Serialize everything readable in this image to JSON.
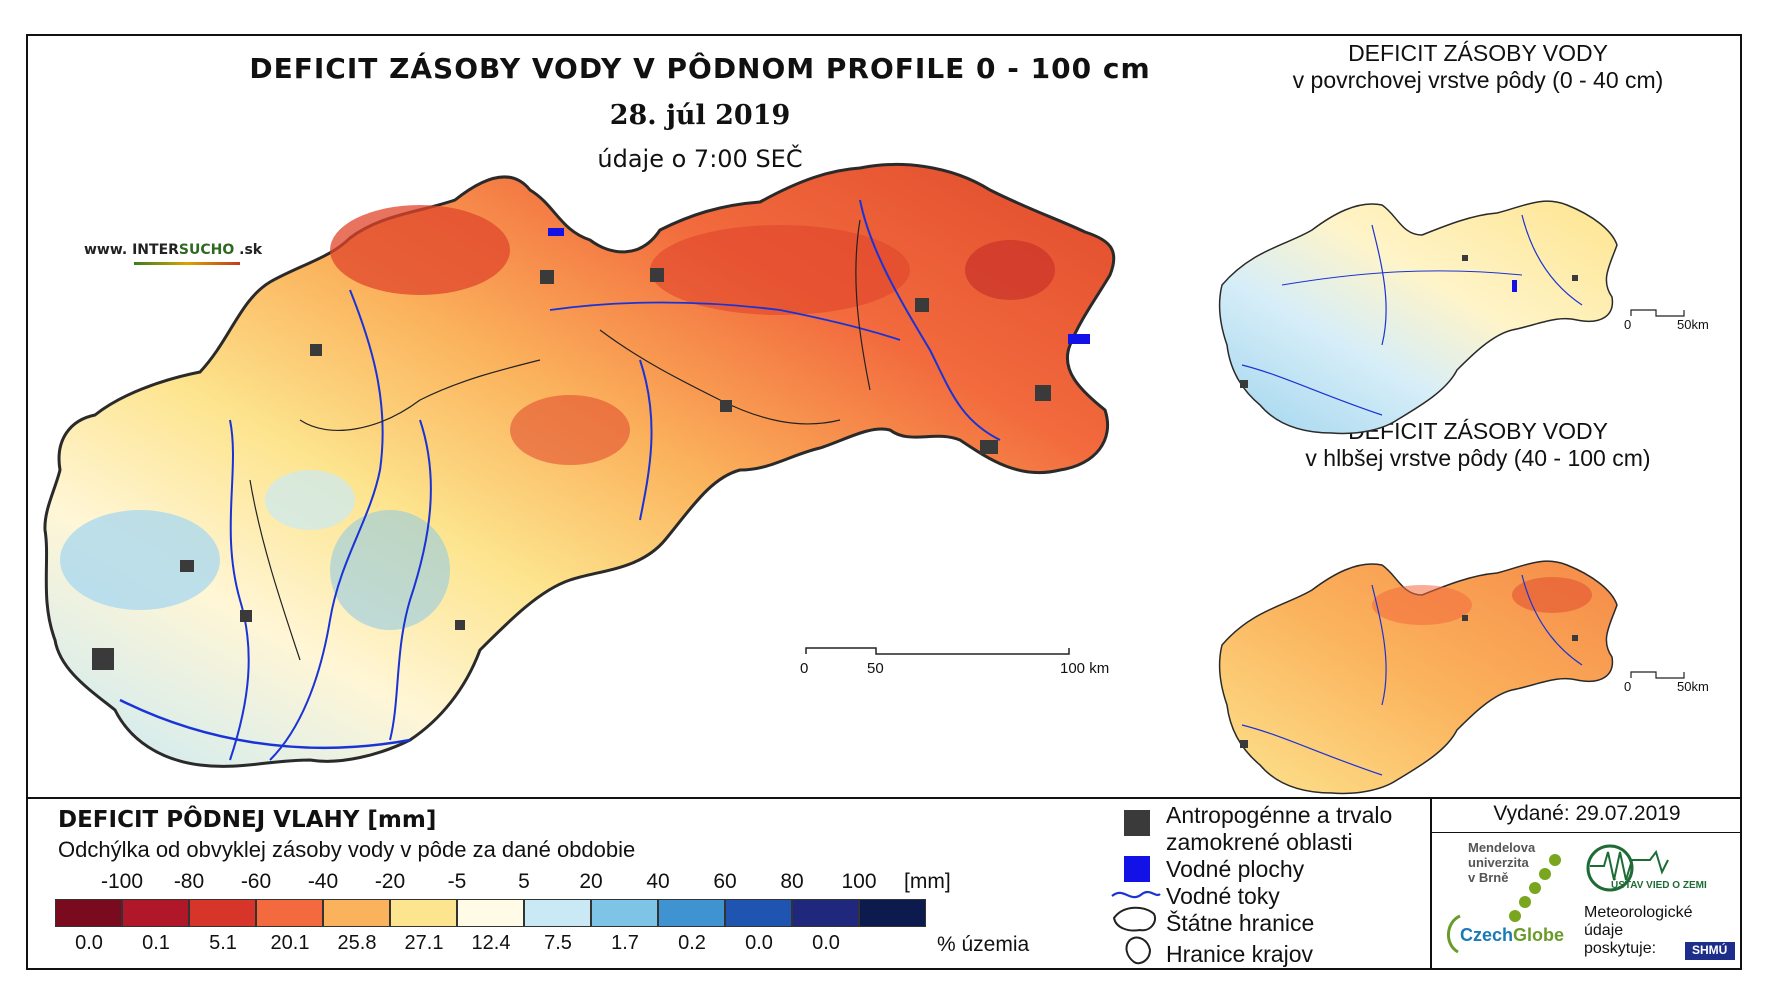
{
  "header": {
    "title": "DEFICIT ZÁSOBY VODY V PÔDNOM PROFILE 0 - 100 cm",
    "date": "28. júl 2019",
    "time_note": "údaje o 7:00 SEČ",
    "site_prefix": "www. INTER",
    "site_accent": "SUCHO",
    "site_suffix": " .sk"
  },
  "insets": [
    {
      "line1": "DEFICIT ZÁSOBY VODY",
      "line2": "v povrchovej vrstve pôdy (0 - 40 cm)",
      "scale_start": "0",
      "scale_end": "50km"
    },
    {
      "line1": "DEFICIT ZÁSOBY VODY",
      "line2": "v hlbšej vrstve pôdy (40 - 100 cm)",
      "scale_start": "0",
      "scale_end": "50km"
    }
  ],
  "main_scale": {
    "start": "0",
    "mid": "50",
    "end": "100 km"
  },
  "legend": {
    "title": "DEFICIT PÔDNEJ VLAHY [mm]",
    "subtitle": "Odchýlka od obvyklej zásoby vody v pôde za dané obdobie",
    "unit": "[mm]",
    "pct_label": "% územia",
    "breaks": [
      "-100",
      "-80",
      "-60",
      "-40",
      "-20",
      "-5",
      "5",
      "20",
      "40",
      "60",
      "80",
      "100"
    ],
    "classes": [
      {
        "color": "#7a0a1e",
        "pct": "0.0"
      },
      {
        "color": "#b0182a",
        "pct": "0.1"
      },
      {
        "color": "#d7352a",
        "pct": "5.1"
      },
      {
        "color": "#f26a3d",
        "pct": "20.1"
      },
      {
        "color": "#fbb25c",
        "pct": "25.8"
      },
      {
        "color": "#fde48e",
        "pct": "27.1"
      },
      {
        "color": "#fffbe6",
        "pct": "12.4"
      },
      {
        "color": "#c9e9f5",
        "pct": "7.5"
      },
      {
        "color": "#7ec4e6",
        "pct": "1.7"
      },
      {
        "color": "#3f93d0",
        "pct": "0.2"
      },
      {
        "color": "#1f55b0",
        "pct": "0.0"
      },
      {
        "color": "#20287e",
        "pct": "0.0"
      },
      {
        "color": "#0c1a4e",
        "pct": ""
      }
    ]
  },
  "key": {
    "urban_line1": "Antropogénne a trvalo",
    "urban_line2": "zamokrené oblasti",
    "water_bodies": "Vodné plochy",
    "rivers": "Vodné toky",
    "state_border": "Štátne hranice",
    "region_border": "Hranice krajov"
  },
  "info": {
    "issued": "Vydané: 29.07.2019",
    "mendel_line1": "Mendelova",
    "mendel_line2": "univerzita",
    "mendel_line3": "v Brně",
    "czechglobe_a": "Czech",
    "czechglobe_b": "Globe",
    "uvgz": "ÚSTAV VIED O ZEMI",
    "met_line1": "Meteorologické",
    "met_line2": "údaje",
    "met_line3": "poskytuje:",
    "shmu": "SHMÚ"
  },
  "colors": {
    "urban": "#3a3a3a",
    "water": "#1212e6",
    "river": "#1a33d6",
    "border": "#222222"
  }
}
